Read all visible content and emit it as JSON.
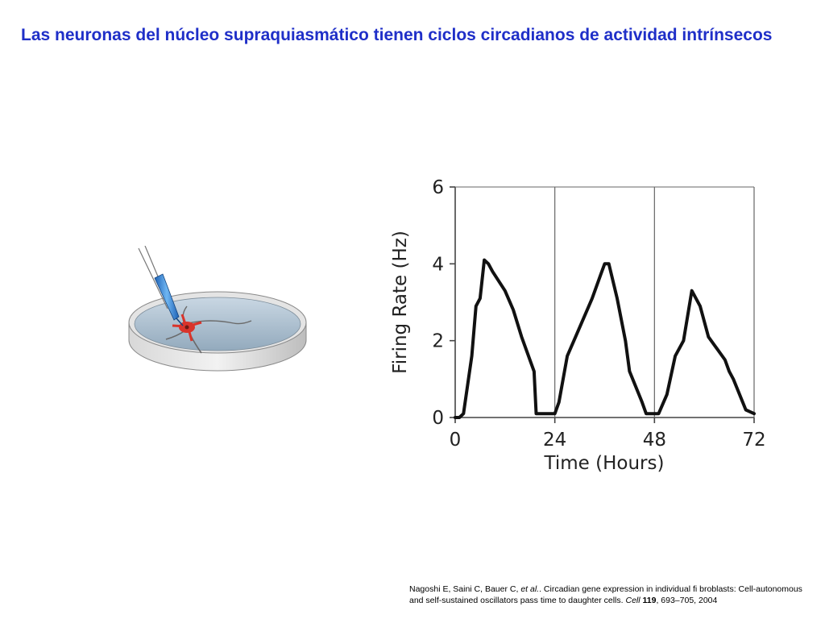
{
  "title": "Las neuronas del núcleo supraquiasmático tienen ciclos circadianos de actividad intrínsecos",
  "illustration": {
    "colors": {
      "dish_rim": "#c8c8c8",
      "medium": "#a9bfd1",
      "neuron": "#d9342b",
      "pipette": "#2a7fd0"
    }
  },
  "chart_data": {
    "type": "line",
    "xlabel": "Time (Hours)",
    "ylabel": "Firing Rate (Hz)",
    "xlim": [
      0,
      72
    ],
    "ylim": [
      0,
      6
    ],
    "xticks": [
      "0",
      "24",
      "48",
      "72"
    ],
    "yticks": [
      "0",
      "2",
      "4",
      "6"
    ],
    "day_markers": [
      24,
      48,
      72
    ],
    "grid": false,
    "line_color": "#111111",
    "series": [
      {
        "x": [
          0,
          1,
          2,
          4,
          5,
          6,
          7,
          8,
          9,
          12,
          14,
          16,
          19,
          19.5,
          23,
          24,
          25,
          27,
          29,
          31,
          33,
          35,
          36,
          37,
          39,
          41,
          42,
          45,
          46,
          48,
          49,
          51,
          53,
          55,
          57,
          59,
          61,
          63,
          65,
          66,
          67,
          70,
          72
        ],
        "y": [
          0,
          0,
          0.1,
          1.6,
          2.9,
          3.1,
          4.1,
          4.0,
          3.8,
          3.3,
          2.8,
          2.1,
          1.2,
          0.1,
          0.1,
          0.1,
          0.4,
          1.6,
          2.1,
          2.6,
          3.1,
          3.7,
          4.0,
          4.0,
          3.1,
          2.0,
          1.2,
          0.4,
          0.1,
          0.1,
          0.1,
          0.6,
          1.6,
          2.0,
          3.3,
          2.9,
          2.1,
          1.8,
          1.5,
          1.2,
          1.0,
          0.2,
          0.1
        ]
      }
    ]
  },
  "citation": {
    "authors": "Nagoshi E, Saini C, Bauer C,",
    "etal": "et al.",
    "text": ". Circadian gene expression in individual fi broblasts: Cell-autonomous and self-sustained oscillators pass time to daughter cells.",
    "journal": "Cell",
    "volume": "119",
    "pages": ", 693–705, 2004"
  }
}
